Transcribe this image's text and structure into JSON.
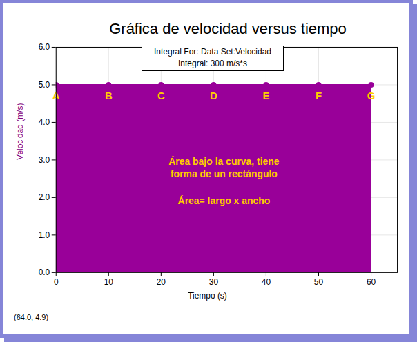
{
  "chart_data": {
    "type": "area",
    "title": "Gráfica de velocidad versus tiempo",
    "x_label": "Tiempo (s)",
    "y_label": "Velocidad (m/s)",
    "x": [
      0,
      10,
      20,
      30,
      40,
      50,
      60
    ],
    "values": [
      5,
      5,
      5,
      5,
      5,
      5,
      5
    ],
    "point_labels": [
      "A",
      "B",
      "C",
      "D",
      "E",
      "F",
      "G"
    ],
    "color": "#990099",
    "marker": "circle",
    "xlim": [
      0,
      65
    ],
    "xticks": [
      0,
      10,
      20,
      30,
      40,
      50,
      60
    ],
    "ylim": [
      0,
      6
    ],
    "yticks": [
      {
        "value": 0,
        "label": "0.0"
      },
      {
        "value": 1,
        "label": "1.0"
      },
      {
        "value": 2,
        "label": "2.0"
      },
      {
        "value": 3,
        "label": "3.0"
      },
      {
        "value": 4,
        "label": "4.0"
      },
      {
        "value": 5,
        "label": "5.0"
      },
      {
        "value": 6,
        "label": "6.0"
      }
    ],
    "grid": true,
    "integral_box": [
      "Integral For: Data Set:Velocidad",
      "Integral: 300 m/s*s"
    ],
    "area_note": [
      "Área bajo la curva, tiene",
      "forma de un rectángulo"
    ],
    "area_formula": "Área= largo x ancho",
    "cursor_readout": "(64.0, 4.9)"
  }
}
